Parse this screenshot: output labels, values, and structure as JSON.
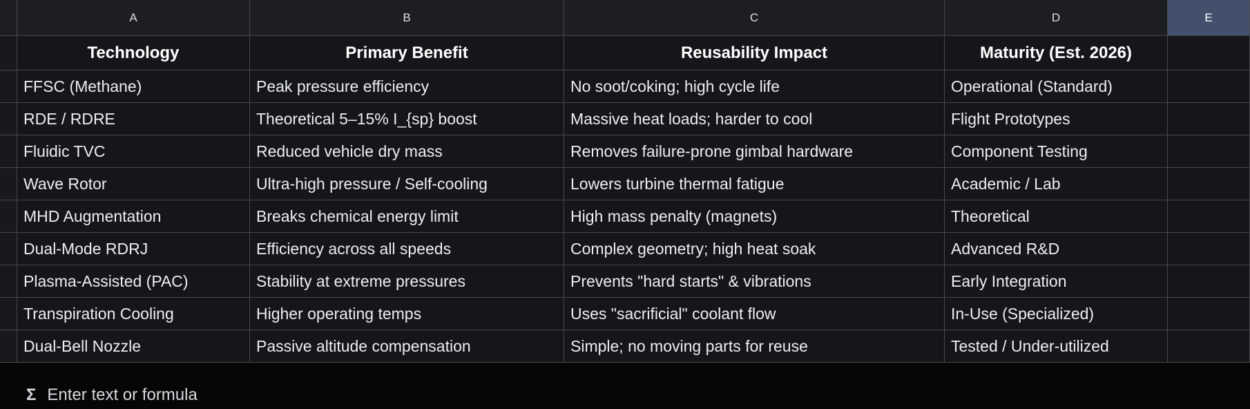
{
  "app": {
    "kind": "spreadsheet",
    "theme": "dark"
  },
  "colors": {
    "selected_column_header": "#42506c",
    "grid_line": "#46484c",
    "cell_background": "#14161a",
    "header_strip_background": "#1c1e22",
    "text": "#eceef1"
  },
  "columns": [
    "A",
    "B",
    "C",
    "D",
    "E"
  ],
  "table": {
    "headers": [
      "Technology",
      "Primary Benefit",
      "Reusability Impact",
      "Maturity (Est. 2026)"
    ],
    "rows": [
      [
        "FFSC (Methane)",
        "Peak pressure efficiency",
        "No soot/coking; high cycle life",
        "Operational (Standard)"
      ],
      [
        "RDE / RDRE",
        "Theoretical 5–15% I_{sp} boost",
        "Massive heat loads; harder to cool",
        "Flight Prototypes"
      ],
      [
        "Fluidic TVC",
        "Reduced vehicle dry mass",
        "Removes failure-prone gimbal hardware",
        "Component Testing"
      ],
      [
        "Wave Rotor",
        "Ultra-high pressure / Self-cooling",
        "Lowers turbine thermal fatigue",
        "Academic / Lab"
      ],
      [
        "MHD Augmentation",
        "Breaks chemical energy limit",
        "High mass penalty (magnets)",
        "Theoretical"
      ],
      [
        "Dual-Mode RDRJ",
        "Efficiency across all speeds",
        "Complex geometry; high heat soak",
        "Advanced R&D"
      ],
      [
        "Plasma-Assisted (PAC)",
        "Stability at extreme pressures",
        "Prevents \"hard starts\" & vibrations",
        "Early Integration"
      ],
      [
        "Transpiration Cooling",
        "Higher operating temps",
        "Uses \"sacrificial\" coolant flow",
        "In-Use (Specialized)"
      ],
      [
        "Dual-Bell Nozzle",
        "Passive altitude compensation",
        "Simple; no moving parts for reuse",
        "Tested / Under-utilized"
      ]
    ]
  },
  "formula_bar": {
    "icon": "Σ",
    "hint": "Enter text or formula"
  }
}
